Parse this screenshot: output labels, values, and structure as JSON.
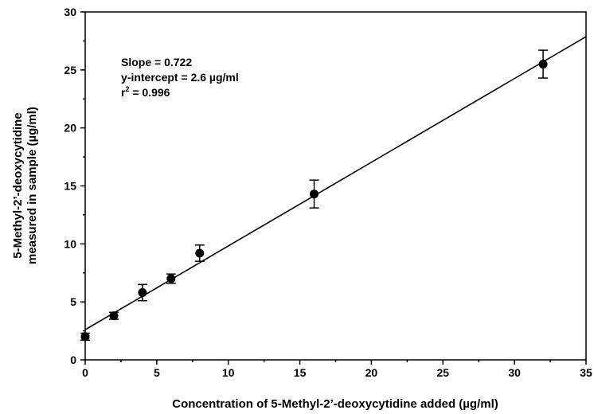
{
  "chart_data": {
    "type": "scatter",
    "title": "",
    "xlabel": "Concentration of 5-Methyl-2’-deoxycytidine added (µg/ml)",
    "ylabel_line1": "5-Methyl-2’-deoxycytidine",
    "ylabel_line2": "measured in sample (µg/ml)",
    "xlim": [
      0,
      35
    ],
    "ylim": [
      0,
      30
    ],
    "xticks": [
      0,
      5,
      10,
      15,
      20,
      25,
      30,
      35
    ],
    "yticks": [
      0,
      5,
      10,
      15,
      20,
      25,
      30
    ],
    "x_minor_step": 2.5,
    "y_minor_step": 2.5,
    "grid": false,
    "legend": "none",
    "series": [
      {
        "points": [
          {
            "x": 0,
            "y": 2.0,
            "err": 0.3
          },
          {
            "x": 2,
            "y": 3.8,
            "err": 0.3
          },
          {
            "x": 4,
            "y": 5.8,
            "err": 0.7
          },
          {
            "x": 6,
            "y": 7.0,
            "err": 0.4
          },
          {
            "x": 8,
            "y": 9.2,
            "err": 0.7
          },
          {
            "x": 16,
            "y": 14.3,
            "err": 1.2
          },
          {
            "x": 32,
            "y": 25.5,
            "err": 1.2
          }
        ]
      }
    ],
    "fit_line": {
      "slope": 0.722,
      "intercept": 2.6,
      "x_range": [
        0,
        35
      ]
    },
    "annotations": {
      "slope": "Slope = 0.722",
      "intercept": "y-intercept = 2.6 µg/ml",
      "r2_prefix": "r",
      "r2_sup": "2",
      "r2_suffix": " = 0.996"
    },
    "colors": {
      "marker": "#000000",
      "line": "#000000",
      "axis": "#000000"
    }
  }
}
